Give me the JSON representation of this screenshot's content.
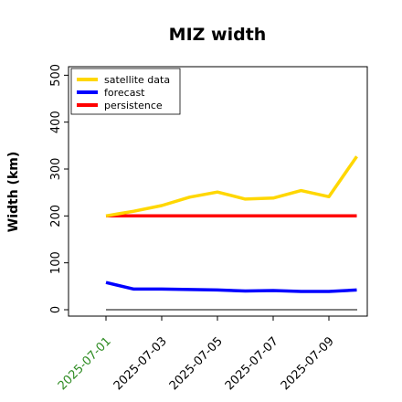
{
  "chart_data": {
    "type": "line",
    "title": "MIZ width",
    "xlabel": "",
    "ylabel": "Width (km)",
    "x": [
      "2025-07-01",
      "2025-07-02",
      "2025-07-03",
      "2025-07-04",
      "2025-07-05",
      "2025-07-06",
      "2025-07-07",
      "2025-07-08",
      "2025-07-09",
      "2025-07-10"
    ],
    "xticks": [
      "2025-07-01",
      "2025-07-03",
      "2025-07-05",
      "2025-07-07",
      "2025-07-09"
    ],
    "highlight_tick": "2025-07-01",
    "highlight_color": "#2e8b22",
    "ylim": [
      -5,
      520
    ],
    "yticks": [
      0,
      100,
      200,
      300,
      400,
      500
    ],
    "grid": false,
    "legend_position": "top-left",
    "zero_line_color": "#808080",
    "series": [
      {
        "name": "satellite data",
        "color": "#ffd700",
        "values": [
          200,
          210,
          222,
          240,
          251,
          236,
          238,
          254,
          241,
          327
        ]
      },
      {
        "name": "forecast",
        "color": "#0000ff",
        "values": [
          58,
          44,
          44,
          43,
          42,
          40,
          41,
          39,
          39,
          42
        ]
      },
      {
        "name": "persistence",
        "color": "#ff0000",
        "values": [
          200,
          200,
          200,
          200,
          200,
          200,
          200,
          200,
          200,
          200
        ]
      }
    ]
  }
}
